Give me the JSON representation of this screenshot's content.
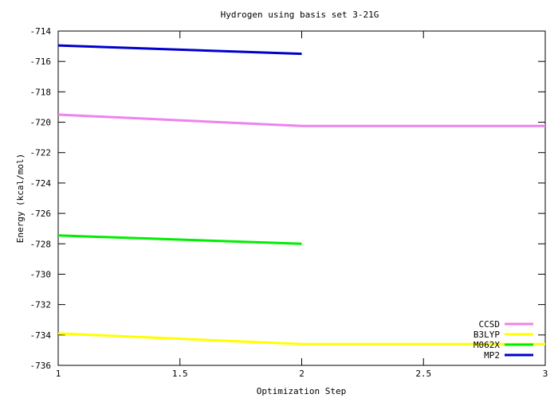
{
  "chart_data": {
    "type": "line",
    "title": "Hydrogen using basis set 3-21G",
    "xlabel": "Optimization Step",
    "ylabel": "Energy (kcal/mol)",
    "xlim": [
      1,
      3
    ],
    "ylim": [
      -736,
      -714
    ],
    "x_ticks": [
      1,
      1.5,
      2,
      2.5,
      3
    ],
    "x_tick_labels": [
      "1",
      "1.5",
      "2",
      "2.5",
      "3"
    ],
    "y_ticks": [
      -736,
      -734,
      -732,
      -730,
      -728,
      -726,
      -724,
      -722,
      -720,
      -718,
      -716,
      -714
    ],
    "y_tick_labels": [
      "-736",
      "-734",
      "-732",
      "-730",
      "-728",
      "-726",
      "-724",
      "-722",
      "-720",
      "-718",
      "-716",
      "-714"
    ],
    "grid": false,
    "legend_position": "bottom-right",
    "series": [
      {
        "name": "CCSD",
        "color": "#ee82ee",
        "x": [
          1,
          2,
          3
        ],
        "y": [
          -719.5,
          -720.25,
          -720.25
        ]
      },
      {
        "name": "B3LYP",
        "color": "#ffff00",
        "x": [
          1,
          2,
          3
        ],
        "y": [
          -733.9,
          -734.6,
          -734.6
        ]
      },
      {
        "name": "M062X",
        "color": "#00ee00",
        "x": [
          1,
          2
        ],
        "y": [
          -727.45,
          -728.0
        ]
      },
      {
        "name": "MP2",
        "color": "#0000cd",
        "x": [
          1,
          2
        ],
        "y": [
          -714.95,
          -715.5
        ]
      }
    ]
  }
}
